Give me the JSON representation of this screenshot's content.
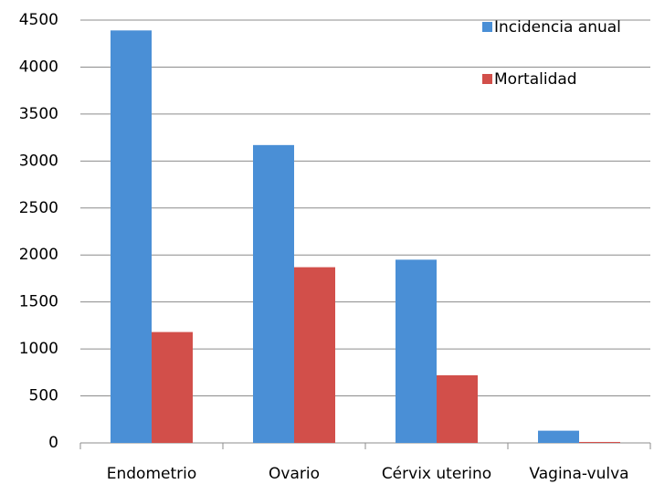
{
  "chart_data": {
    "type": "bar",
    "categories": [
      "Endometrio",
      "Ovario",
      "Cérvix uterino",
      "Vagina-vulva"
    ],
    "series": [
      {
        "name": "Incidencia anual",
        "color": "#4a8fd6",
        "values": [
          4390,
          3170,
          1950,
          130
        ]
      },
      {
        "name": "Mortalidad",
        "color": "#d24f4a",
        "values": [
          1180,
          1870,
          720,
          10
        ]
      }
    ],
    "ylim": [
      0,
      4500
    ],
    "yticks": [
      0,
      500,
      1000,
      1500,
      2000,
      2500,
      3000,
      3500,
      4000,
      4500
    ],
    "grid": true,
    "legend": "upper right"
  }
}
